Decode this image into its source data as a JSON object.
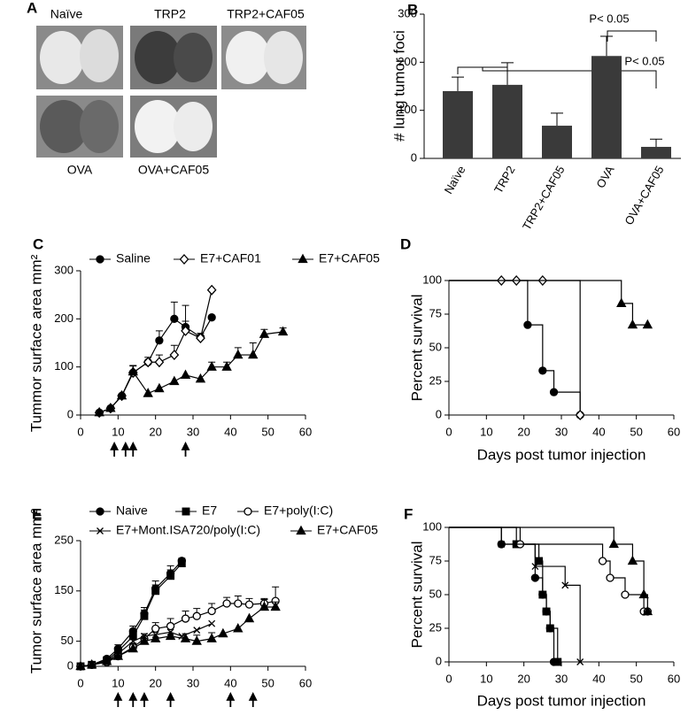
{
  "panel_a": {
    "panel": "A",
    "images": [
      "Naïve",
      "TRP2",
      "TRP2+CAF05",
      "OVA",
      "OVA+CAF05"
    ]
  },
  "chart_data": [
    {
      "type": "bar",
      "panel": "B",
      "ylabel": "# lung tumor foci",
      "categories": [
        "Naïve",
        "TRP2",
        "TRP2+CAF05",
        "OVA",
        "OVA+CAF05"
      ],
      "values": [
        140,
        153,
        68,
        213,
        24
      ],
      "errors": [
        29,
        46,
        26,
        41,
        16
      ],
      "color": "#3a3a3a",
      "ylim": [
        0,
        300
      ],
      "yticks": [
        0,
        100,
        200,
        300
      ],
      "annotations": [
        "P< 0.05",
        "P< 0.05"
      ]
    },
    {
      "type": "line",
      "panel": "C",
      "ylabel": "Tummor surface area mm²",
      "xlim": [
        0,
        60
      ],
      "xticks": [
        0,
        10,
        20,
        30,
        40,
        50,
        60
      ],
      "ylim": [
        0,
        300
      ],
      "yticks": [
        0,
        100,
        200,
        300
      ],
      "arrows": [
        9,
        12,
        14,
        28
      ],
      "series": [
        {
          "name": "Saline",
          "marker": "circle",
          "filled": true,
          "x": [
            5,
            8,
            11,
            14,
            18,
            21,
            25,
            28,
            32,
            35
          ],
          "values": [
            5,
            14,
            40,
            88,
            110,
            155,
            200,
            183,
            162,
            203
          ],
          "errors": [
            null,
            null,
            null,
            15,
            null,
            20,
            35,
            45,
            null,
            null
          ]
        },
        {
          "name": "E7+CAF01",
          "marker": "diamond",
          "filled": false,
          "x": [
            5,
            8,
            11,
            14,
            18,
            21,
            25,
            28,
            32,
            35
          ],
          "values": [
            5,
            14,
            40,
            88,
            110,
            110,
            125,
            175,
            160,
            260
          ],
          "errors": [
            null,
            null,
            null,
            null,
            10,
            15,
            20,
            20,
            10,
            null
          ]
        },
        {
          "name": "E7+CAF05",
          "marker": "triangle",
          "filled": true,
          "x": [
            5,
            8,
            11,
            14,
            18,
            21,
            25,
            28,
            32,
            35,
            39,
            42,
            46,
            49,
            54
          ],
          "values": [
            5,
            14,
            40,
            90,
            45,
            55,
            70,
            83,
            75,
            100,
            100,
            125,
            125,
            168,
            173
          ],
          "errors": [
            null,
            null,
            null,
            12,
            null,
            null,
            null,
            null,
            null,
            10,
            10,
            15,
            25,
            10,
            8
          ]
        }
      ]
    },
    {
      "type": "step",
      "panel": "D",
      "ylabel": "Percent survival",
      "xlabel": "Days post tumor injection",
      "xlim": [
        0,
        60
      ],
      "xticks": [
        0,
        10,
        20,
        30,
        40,
        50,
        60
      ],
      "ylim": [
        0,
        100
      ],
      "yticks": [
        0,
        25,
        50,
        75,
        100
      ],
      "series": [
        {
          "marker": "circle",
          "filled": true,
          "x": [
            0,
            21,
            25,
            28,
            35
          ],
          "values": [
            100,
            67,
            33,
            17,
            0
          ]
        },
        {
          "marker": "diamond",
          "filled": false,
          "x": [
            0,
            14,
            18,
            25,
            35
          ],
          "values": [
            100,
            100,
            100,
            100,
            0
          ]
        },
        {
          "marker": "triangle",
          "filled": true,
          "x": [
            0,
            46,
            49,
            53
          ],
          "values": [
            100,
            83,
            67,
            67
          ]
        }
      ]
    },
    {
      "type": "line",
      "panel": "E",
      "ylabel": "Tumor surface area mm²",
      "xlim": [
        0,
        60
      ],
      "xticks": [
        0,
        10,
        20,
        30,
        40,
        50,
        60
      ],
      "ylim": [
        0,
        250
      ],
      "yticks": [
        0,
        50,
        150,
        250
      ],
      "arrows": [
        10,
        14,
        17,
        24,
        40,
        46
      ],
      "series": [
        {
          "name": "Naive",
          "marker": "circle",
          "filled": true,
          "x": [
            0,
            3,
            7,
            10,
            14,
            17,
            20,
            24,
            27
          ],
          "values": [
            0,
            3,
            15,
            35,
            70,
            105,
            155,
            185,
            210
          ],
          "errors": [
            null,
            null,
            null,
            8,
            10,
            12,
            15,
            15,
            5
          ]
        },
        {
          "name": "E7",
          "marker": "square",
          "filled": true,
          "x": [
            0,
            3,
            7,
            10,
            14,
            17,
            20,
            24,
            27
          ],
          "values": [
            0,
            3,
            12,
            30,
            60,
            100,
            150,
            180,
            205
          ],
          "errors": [
            null,
            null,
            null,
            8,
            10,
            12,
            12,
            12,
            5
          ]
        },
        {
          "name": "E7+poly(I:C)",
          "marker": "circle",
          "filled": false,
          "x": [
            0,
            3,
            7,
            10,
            14,
            17,
            20,
            24,
            28,
            31,
            35,
            39,
            42,
            45,
            49,
            52
          ],
          "values": [
            0,
            3,
            8,
            20,
            38,
            55,
            75,
            80,
            95,
            100,
            110,
            125,
            125,
            123,
            125,
            130
          ],
          "errors": [
            null,
            null,
            null,
            null,
            8,
            10,
            12,
            15,
            15,
            15,
            15,
            12,
            15,
            12,
            10,
            28
          ]
        },
        {
          "name": "E7+Mont.ISA720/poly(I:C)",
          "marker": "x",
          "filled": false,
          "x": [
            0,
            3,
            7,
            10,
            14,
            17,
            20,
            24,
            27,
            31,
            35
          ],
          "values": [
            0,
            3,
            10,
            25,
            50,
            60,
            63,
            68,
            60,
            72,
            85
          ],
          "errors": [
            null,
            null,
            null,
            null,
            null,
            null,
            null,
            null,
            null,
            null,
            null
          ]
        },
        {
          "name": "E7+CAF05",
          "marker": "triangle",
          "filled": true,
          "x": [
            0,
            3,
            7,
            10,
            14,
            17,
            20,
            24,
            28,
            31,
            35,
            38,
            42,
            45,
            49,
            52
          ],
          "values": [
            0,
            3,
            10,
            20,
            35,
            50,
            55,
            60,
            55,
            50,
            55,
            65,
            75,
            95,
            118,
            118
          ],
          "errors": [
            null,
            null,
            null,
            null,
            null,
            null,
            null,
            null,
            10,
            12,
            12,
            null,
            null,
            null,
            15,
            10
          ]
        }
      ]
    },
    {
      "type": "step",
      "panel": "F",
      "ylabel": "Percent survival",
      "xlabel": "Days post tumor injection",
      "xlim": [
        0,
        60
      ],
      "xticks": [
        0,
        10,
        20,
        30,
        40,
        50,
        60
      ],
      "ylim": [
        0,
        100
      ],
      "yticks": [
        0,
        25,
        50,
        75,
        100
      ],
      "series": [
        {
          "marker": "circle",
          "filled": true,
          "x": [
            0,
            14,
            23,
            25,
            26,
            27,
            28
          ],
          "values": [
            100,
            87.5,
            62.5,
            50,
            37.5,
            25,
            0
          ]
        },
        {
          "marker": "square",
          "filled": true,
          "x": [
            0,
            18,
            24,
            25,
            26,
            27,
            29
          ],
          "values": [
            100,
            87.5,
            75,
            50,
            37.5,
            25,
            0
          ]
        },
        {
          "marker": "circle",
          "filled": false,
          "x": [
            0,
            19,
            41,
            43,
            47,
            52,
            53
          ],
          "values": [
            100,
            87.5,
            75,
            62.5,
            50,
            37.5,
            37.5
          ]
        },
        {
          "marker": "x",
          "filled": false,
          "x": [
            0,
            14,
            23,
            31,
            35
          ],
          "values": [
            100,
            87.5,
            71,
            57,
            0
          ]
        },
        {
          "marker": "triangle",
          "filled": true,
          "x": [
            0,
            44,
            49,
            52,
            53
          ],
          "values": [
            100,
            87.5,
            75,
            50,
            37.5
          ]
        }
      ]
    }
  ]
}
